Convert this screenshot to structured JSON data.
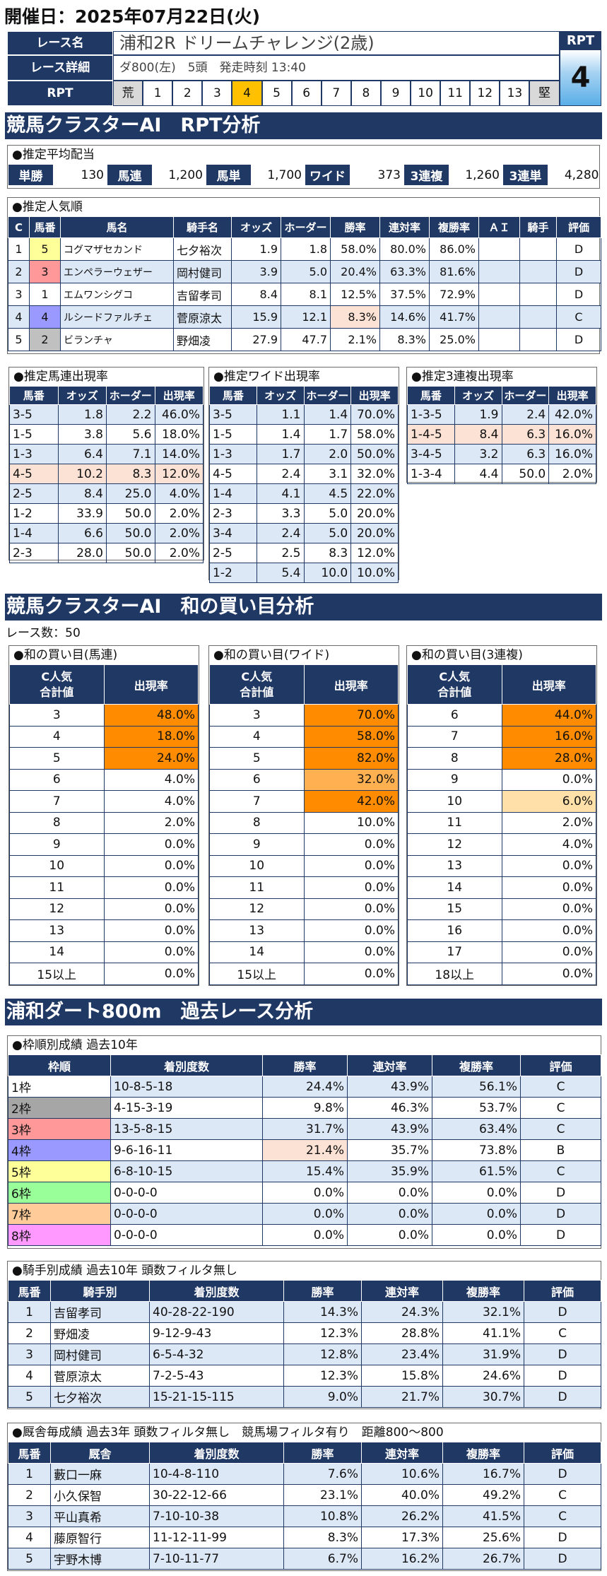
{
  "date": "開催日：2025年07月22日(火)",
  "race": {
    "name_label": "レース名",
    "name": "浦和2R ドリームチャレンジ(2歳)",
    "detail_label": "レース詳細",
    "detail": "ダ800(左)　5頭　発走時刻 13:40",
    "rpt_label": "RPT",
    "rpt_scale": [
      "荒",
      "1",
      "2",
      "3",
      "4",
      "5",
      "6",
      "7",
      "8",
      "9",
      "10",
      "11",
      "12",
      "13",
      "堅"
    ],
    "rpt_selected": 4,
    "rpt_box_title": "RPT",
    "rpt_value": "4"
  },
  "sec1": {
    "title": "競馬クラスターAI　RPT分析"
  },
  "avg": {
    "caption": "●推定平均配当",
    "items": [
      [
        "単勝",
        "130"
      ],
      [
        "馬連",
        "1,200"
      ],
      [
        "馬単",
        "1,700"
      ],
      [
        "ワイド",
        "373"
      ],
      [
        "3連複",
        "1,260"
      ],
      [
        "3連単",
        "4,280"
      ]
    ]
  },
  "pop": {
    "caption": "●推定人気順",
    "headers": [
      "C",
      "馬番",
      "馬名",
      "騎手名",
      "オッズ",
      "ホーダー",
      "勝率",
      "連対率",
      "複勝率",
      "ＡＩ",
      "騎手",
      "評価"
    ],
    "rows": [
      [
        "1",
        "5",
        "コグマザセカンド",
        "七夕裕次",
        "1.9",
        "1.8",
        "58.0%",
        "80.0%",
        "86.0%",
        "",
        "",
        "D"
      ],
      [
        "2",
        "3",
        "エンペラーウェザー",
        "岡村健司",
        "3.9",
        "5.0",
        "20.4%",
        "63.3%",
        "81.6%",
        "",
        "",
        "D"
      ],
      [
        "3",
        "1",
        "エムワンシグコ",
        "吉留孝司",
        "8.4",
        "8.1",
        "12.5%",
        "37.5%",
        "72.9%",
        "",
        "",
        "D"
      ],
      [
        "4",
        "4",
        "ルシードファルチェ",
        "菅原涼太",
        "15.9",
        "12.1",
        "8.3%",
        "14.6%",
        "41.7%",
        "",
        "",
        "C"
      ],
      [
        "5",
        "2",
        "ビランチャ",
        "野畑凌",
        "27.9",
        "47.7",
        "2.1%",
        "8.3%",
        "25.0%",
        "",
        "",
        "D"
      ]
    ],
    "num_colors": [
      "#ffff99",
      "#ff9999",
      "#ffffff",
      "#9999ff",
      "#c0c0c0"
    ]
  },
  "umaren": {
    "caption": "●推定馬連出現率",
    "headers": [
      "馬番",
      "オッズ",
      "ホーダー",
      "出現率"
    ],
    "rows": [
      [
        "3-5",
        "1.8",
        "2.2",
        "46.0%"
      ],
      [
        "1-5",
        "3.8",
        "5.6",
        "18.0%"
      ],
      [
        "1-3",
        "6.4",
        "7.1",
        "14.0%"
      ],
      [
        "4-5",
        "10.2",
        "8.3",
        "12.0%"
      ],
      [
        "2-5",
        "8.4",
        "25.0",
        "4.0%"
      ],
      [
        "1-2",
        "33.9",
        "50.0",
        "2.0%"
      ],
      [
        "1-4",
        "6.6",
        "50.0",
        "2.0%"
      ],
      [
        "2-3",
        "28.0",
        "50.0",
        "2.0%"
      ]
    ]
  },
  "wide": {
    "caption": "●推定ワイド出現率",
    "headers": [
      "馬番",
      "オッズ",
      "ホーダー",
      "出現率"
    ],
    "rows": [
      [
        "3-5",
        "1.1",
        "1.4",
        "70.0%"
      ],
      [
        "1-5",
        "1.4",
        "1.7",
        "58.0%"
      ],
      [
        "1-3",
        "1.7",
        "2.0",
        "50.0%"
      ],
      [
        "4-5",
        "2.4",
        "3.1",
        "32.0%"
      ],
      [
        "1-4",
        "4.1",
        "4.5",
        "22.0%"
      ],
      [
        "2-3",
        "3.3",
        "5.0",
        "20.0%"
      ],
      [
        "3-4",
        "2.4",
        "5.0",
        "20.0%"
      ],
      [
        "2-5",
        "2.5",
        "8.3",
        "12.0%"
      ],
      [
        "1-2",
        "5.4",
        "10.0",
        "10.0%"
      ]
    ]
  },
  "sanren": {
    "caption": "●推定3連複出現率",
    "headers": [
      "馬番",
      "オッズ",
      "ホーダー",
      "出現率"
    ],
    "rows": [
      [
        "1-3-5",
        "1.9",
        "2.4",
        "42.0%"
      ],
      [
        "1-4-5",
        "8.4",
        "6.3",
        "16.0%"
      ],
      [
        "3-4-5",
        "3.2",
        "6.3",
        "16.0%"
      ],
      [
        "1-3-4",
        "4.4",
        "50.0",
        "2.0%"
      ]
    ]
  },
  "sec2": {
    "title": "競馬クラスターAI　和の買い目分析",
    "race_count": "レース数：50"
  },
  "wa": [
    {
      "caption": "●和の買い目(馬連)",
      "h1a": "C人気",
      "h1b": "合計値",
      "h2": "出現率",
      "rows": [
        [
          "3",
          "48.0%"
        ],
        [
          "4",
          "18.0%"
        ],
        [
          "5",
          "24.0%"
        ],
        [
          "6",
          "4.0%"
        ],
        [
          "7",
          "4.0%"
        ],
        [
          "8",
          "2.0%"
        ],
        [
          "9",
          "0.0%"
        ],
        [
          "10",
          "0.0%"
        ],
        [
          "11",
          "0.0%"
        ],
        [
          "12",
          "0.0%"
        ],
        [
          "13",
          "0.0%"
        ],
        [
          "14",
          "0.0%"
        ],
        [
          "15以上",
          "0.0%"
        ]
      ],
      "hl": [
        "o1",
        "o1",
        "o1",
        "",
        "",
        "",
        "",
        "",
        "",
        "",
        "",
        "",
        ""
      ]
    },
    {
      "caption": "●和の買い目(ワイド)",
      "h1a": "C人気",
      "h1b": "合計値",
      "h2": "出現率",
      "rows": [
        [
          "3",
          "70.0%"
        ],
        [
          "4",
          "58.0%"
        ],
        [
          "5",
          "82.0%"
        ],
        [
          "6",
          "32.0%"
        ],
        [
          "7",
          "42.0%"
        ],
        [
          "8",
          "10.0%"
        ],
        [
          "9",
          "0.0%"
        ],
        [
          "10",
          "0.0%"
        ],
        [
          "11",
          "0.0%"
        ],
        [
          "12",
          "0.0%"
        ],
        [
          "13",
          "0.0%"
        ],
        [
          "14",
          "0.0%"
        ],
        [
          "15以上",
          "0.0%"
        ]
      ],
      "hl": [
        "o1",
        "o1",
        "o1",
        "o2",
        "o1",
        "",
        "",
        "",
        "",
        "",
        "",
        "",
        ""
      ]
    },
    {
      "caption": "●和の買い目(3連複)",
      "h1a": "C人気",
      "h1b": "合計値",
      "h2": "出現率",
      "rows": [
        [
          "6",
          "44.0%"
        ],
        [
          "7",
          "16.0%"
        ],
        [
          "8",
          "28.0%"
        ],
        [
          "9",
          "0.0%"
        ],
        [
          "10",
          "6.0%"
        ],
        [
          "11",
          "2.0%"
        ],
        [
          "12",
          "4.0%"
        ],
        [
          "13",
          "0.0%"
        ],
        [
          "14",
          "0.0%"
        ],
        [
          "15",
          "0.0%"
        ],
        [
          "16",
          "0.0%"
        ],
        [
          "17",
          "0.0%"
        ],
        [
          "18以上",
          "0.0%"
        ]
      ],
      "hl": [
        "o1",
        "o1",
        "o1",
        "",
        "o3",
        "",
        "",
        "",
        "",
        "",
        "",
        "",
        ""
      ]
    }
  ],
  "sec3": {
    "title": "浦和ダート800m　過去レース分析"
  },
  "waku": {
    "caption": "●枠順別成績 過去10年",
    "headers": [
      "枠順",
      "着別度数",
      "勝率",
      "連対率",
      "複勝率",
      "評価"
    ],
    "rows": [
      [
        "1枠",
        "10-8-5-18",
        "24.4%",
        "43.9%",
        "56.1%",
        "C"
      ],
      [
        "2枠",
        "4-15-3-19",
        "9.8%",
        "46.3%",
        "53.7%",
        "C"
      ],
      [
        "3枠",
        "13-5-8-15",
        "31.7%",
        "43.9%",
        "63.4%",
        "C"
      ],
      [
        "4枠",
        "9-6-16-11",
        "21.4%",
        "35.7%",
        "73.8%",
        "B"
      ],
      [
        "5枠",
        "6-8-10-15",
        "15.4%",
        "35.9%",
        "61.5%",
        "C"
      ],
      [
        "6枠",
        "0-0-0-0",
        "0.0%",
        "0.0%",
        "0.0%",
        "D"
      ],
      [
        "7枠",
        "0-0-0-0",
        "0.0%",
        "0.0%",
        "0.0%",
        "D"
      ],
      [
        "8枠",
        "0-0-0-0",
        "0.0%",
        "0.0%",
        "0.0%",
        "D"
      ]
    ],
    "colors": [
      "#ffffff",
      "#a6a6a6",
      "#ff9999",
      "#9999ff",
      "#ffff99",
      "#99ff99",
      "#ffcc99",
      "#ff99ff"
    ]
  },
  "jockey": {
    "caption": "●騎手別成績 過去10年 頭数フィルタ無し",
    "headers": [
      "馬番",
      "騎手別",
      "着別度数",
      "勝率",
      "連対率",
      "複勝率",
      "評価"
    ],
    "rows": [
      [
        "1",
        "吉留孝司",
        "40-28-22-190",
        "14.3%",
        "24.3%",
        "32.1%",
        "D"
      ],
      [
        "2",
        "野畑凌",
        "9-12-9-43",
        "12.3%",
        "28.8%",
        "41.1%",
        "C"
      ],
      [
        "3",
        "岡村健司",
        "6-5-4-32",
        "12.8%",
        "23.4%",
        "31.9%",
        "D"
      ],
      [
        "4",
        "菅原涼太",
        "7-2-5-43",
        "12.3%",
        "15.8%",
        "24.6%",
        "D"
      ],
      [
        "5",
        "七夕裕次",
        "15-21-15-115",
        "9.0%",
        "21.7%",
        "30.7%",
        "D"
      ]
    ]
  },
  "stable": {
    "caption": "●厩舎毎成績 過去3年 頭数フィルタ無し　競馬場フィルタ有り　距離800～800",
    "headers": [
      "馬番",
      "厩舎",
      "着別度数",
      "勝率",
      "連対率",
      "複勝率",
      "評価"
    ],
    "rows": [
      [
        "1",
        "藪口一麻",
        "10-4-8-110",
        "7.6%",
        "10.6%",
        "16.7%",
        "D"
      ],
      [
        "2",
        "小久保智",
        "30-22-12-66",
        "23.1%",
        "40.0%",
        "49.2%",
        "C"
      ],
      [
        "3",
        "平山真希",
        "7-10-10-38",
        "10.8%",
        "26.2%",
        "41.5%",
        "C"
      ],
      [
        "4",
        "藤原智行",
        "11-12-11-99",
        "8.3%",
        "17.3%",
        "25.6%",
        "D"
      ],
      [
        "5",
        "宇野木博",
        "7-10-11-77",
        "6.7%",
        "16.2%",
        "26.7%",
        "D"
      ]
    ]
  }
}
